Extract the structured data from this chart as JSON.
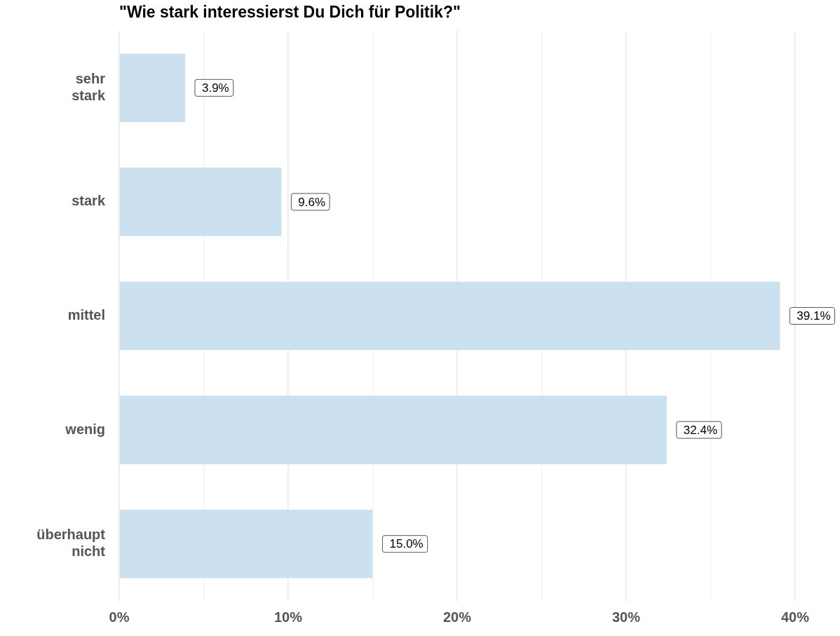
{
  "chart_data": {
    "type": "bar",
    "orientation": "horizontal",
    "title": "\"Wie stark interessierst Du Dich für Politik?\"",
    "categories": [
      "sehr stark",
      "stark",
      "mittel",
      "wenig",
      "überhaupt nicht"
    ],
    "values": [
      3.9,
      9.6,
      39.1,
      32.4,
      15.0
    ],
    "value_labels": [
      "3.9%",
      "9.6%",
      "39.1%",
      "32.4%",
      "15.0%"
    ],
    "color": "#cce1ef",
    "xlim": [
      0,
      40
    ],
    "xticks": [
      {
        "value": 0,
        "label": "0%"
      },
      {
        "value": 5,
        "label": null
      },
      {
        "value": 10,
        "label": "10%"
      },
      {
        "value": 15,
        "label": null
      },
      {
        "value": 20,
        "label": "20%"
      },
      {
        "value": 25,
        "label": null
      },
      {
        "value": 30,
        "label": "30%"
      },
      {
        "value": 35,
        "label": null
      },
      {
        "value": 40,
        "label": "40%"
      }
    ],
    "grid": "x",
    "legend": false
  }
}
